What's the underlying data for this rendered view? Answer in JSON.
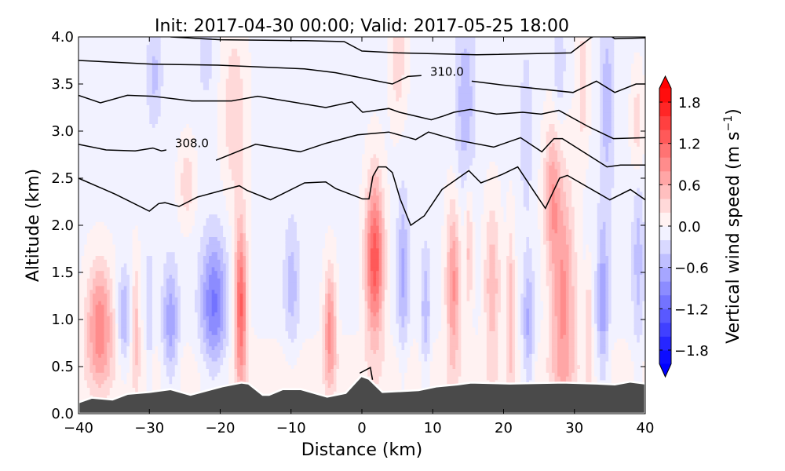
{
  "chart_data": {
    "type": "heatmap",
    "title": "Init: 2017-04-30 00:00; Valid: 2017-05-25 18:00",
    "xlabel": "Distance (km)",
    "ylabel": "Altitude (km)",
    "xlim": [
      -40,
      40
    ],
    "ylim": [
      0,
      4.0
    ],
    "xticks": [
      -40,
      -30,
      -20,
      -10,
      0,
      10,
      20,
      30,
      40
    ],
    "xtick_labels": [
      "−40",
      "−30",
      "−20",
      "−10",
      "0",
      "10",
      "20",
      "30",
      "40"
    ],
    "yticks": [
      0,
      0.5,
      1.0,
      1.5,
      2.0,
      2.5,
      3.0,
      3.5,
      4.0
    ],
    "ytick_labels": [
      "0.0",
      "0.5",
      "1.0",
      "1.5",
      "2.0",
      "2.5",
      "3.0",
      "3.5",
      "4.0"
    ],
    "grid": false,
    "colorbar": {
      "label": "Vertical wind speed (m s⁻¹)",
      "label_main": "Vertical wind speed (m s",
      "label_sup": "−1",
      "label_close": ")",
      "colormap": "bwr",
      "levels_min": -2.0,
      "levels_max": 2.0,
      "level_step": 0.2,
      "extend": "both",
      "ticks": [
        1.8,
        1.2,
        0.6,
        0.0,
        -0.6,
        -1.2,
        -1.8
      ],
      "tick_labels": [
        "1.8",
        "1.2",
        "0.6",
        "0.0",
        "−0.6",
        "−1.2",
        "−1.8"
      ],
      "position": "right"
    },
    "field_background": -0.05,
    "vertical_wind_features": [
      {
        "x": -37.0,
        "z": 0.95,
        "sx": 1.3,
        "sz": 0.45,
        "w": 1.0
      },
      {
        "x": -33.6,
        "z": 1.03,
        "sx": 0.6,
        "sz": 0.35,
        "w": -0.6
      },
      {
        "x": -31.9,
        "z": 0.95,
        "sx": 0.4,
        "sz": 0.5,
        "w": 0.5
      },
      {
        "x": -30.0,
        "z": 1.08,
        "sx": 0.3,
        "sz": 0.5,
        "w": -0.4
      },
      {
        "x": -27.0,
        "z": 0.95,
        "sx": 0.8,
        "sz": 0.45,
        "w": -0.7
      },
      {
        "x": -20.9,
        "z": 1.17,
        "sx": 1.3,
        "sz": 0.5,
        "w": -1.0
      },
      {
        "x": -17.1,
        "z": 1.17,
        "sx": 0.6,
        "sz": 0.6,
        "w": 1.3
      },
      {
        "x": -9.9,
        "z": 1.37,
        "sx": 0.8,
        "sz": 0.5,
        "w": -0.45
      },
      {
        "x": -4.5,
        "z": 0.92,
        "sx": 0.6,
        "sz": 0.45,
        "w": 0.9
      },
      {
        "x": -18.0,
        "z": 3.2,
        "sx": 1.2,
        "sz": 0.7,
        "w": 0.4
      },
      {
        "x": -24.7,
        "z": 2.45,
        "sx": 0.8,
        "sz": 0.3,
        "w": 0.4
      },
      {
        "x": -29.3,
        "z": 3.6,
        "sx": 0.8,
        "sz": 0.4,
        "w": -0.4
      },
      {
        "x": -22.0,
        "z": 3.8,
        "sx": 0.8,
        "sz": 0.3,
        "w": -0.3
      },
      {
        "x": 1.8,
        "z": 1.64,
        "sx": 0.9,
        "sz": 0.6,
        "w": 1.4
      },
      {
        "x": 5.8,
        "z": 1.5,
        "sx": 0.6,
        "sz": 0.6,
        "w": -0.6
      },
      {
        "x": 9.0,
        "z": 1.08,
        "sx": 0.5,
        "sz": 0.5,
        "w": -0.5
      },
      {
        "x": 12.9,
        "z": 1.37,
        "sx": 0.7,
        "sz": 0.6,
        "w": 0.9
      },
      {
        "x": 15.1,
        "z": 1.78,
        "sx": 0.4,
        "sz": 0.5,
        "w": 0.5
      },
      {
        "x": 18.4,
        "z": 1.37,
        "sx": 0.8,
        "sz": 0.6,
        "w": 0.6
      },
      {
        "x": 21.0,
        "z": 1.14,
        "sx": 0.4,
        "sz": 0.6,
        "w": 0.6
      },
      {
        "x": 23.5,
        "z": 0.92,
        "sx": 0.6,
        "sz": 0.5,
        "w": -0.6
      },
      {
        "x": 28.4,
        "z": 1.22,
        "sx": 1.2,
        "sz": 0.9,
        "w": 0.9
      },
      {
        "x": 26.8,
        "z": 2.33,
        "sx": 0.8,
        "sz": 0.5,
        "w": 0.7
      },
      {
        "x": 34.0,
        "z": 1.17,
        "sx": 0.6,
        "sz": 0.6,
        "w": -0.7
      },
      {
        "x": 32.0,
        "z": 0.92,
        "sx": 0.3,
        "sz": 0.4,
        "w": 0.5
      },
      {
        "x": 39.0,
        "z": 1.64,
        "sx": 0.6,
        "sz": 0.7,
        "w": -0.45
      },
      {
        "x": 34.6,
        "z": 3.3,
        "sx": 0.8,
        "sz": 0.8,
        "w": -0.45
      },
      {
        "x": 31.2,
        "z": 3.5,
        "sx": 0.6,
        "sz": 0.5,
        "w": 0.4
      },
      {
        "x": 27.9,
        "z": 3.7,
        "sx": 0.6,
        "sz": 0.4,
        "w": -0.35
      },
      {
        "x": 38.9,
        "z": 3.05,
        "sx": 0.6,
        "sz": 0.4,
        "w": 0.4
      },
      {
        "x": 23.2,
        "z": 3.0,
        "sx": 0.6,
        "sz": 0.6,
        "w": -0.35
      },
      {
        "x": 5.1,
        "z": 3.8,
        "sx": 0.8,
        "sz": 0.5,
        "w": 0.4
      },
      {
        "x": 14.6,
        "z": 3.3,
        "sx": 1.0,
        "sz": 0.7,
        "w": -0.5
      },
      {
        "x": 0.0,
        "z": 0.45,
        "sx": 60,
        "sz": 0.25,
        "w": 0.15
      }
    ],
    "contour_labels": [
      {
        "text": "308.0",
        "x": -24.0,
        "z": 2.87
      },
      {
        "text": "310.0",
        "x": 12.0,
        "z": 3.63
      }
    ],
    "contours": [
      [
        [
          -27,
          4.0
        ],
        [
          -20,
          3.97
        ],
        [
          -8,
          3.96
        ],
        [
          -2.5,
          3.95
        ],
        [
          0,
          3.85
        ],
        [
          5.1,
          3.83
        ],
        [
          16.2,
          3.81
        ],
        [
          29.5,
          3.83
        ],
        [
          32.3,
          3.99
        ],
        [
          32.6,
          4.0
        ]
      ],
      [
        [
          35.3,
          4.0
        ],
        [
          35.7,
          3.98
        ],
        [
          40,
          3.99
        ]
      ],
      [
        [
          -40,
          3.75
        ],
        [
          -29.5,
          3.71
        ],
        [
          -20.3,
          3.7
        ],
        [
          -8.1,
          3.66
        ],
        [
          -3.7,
          3.62
        ],
        [
          4.3,
          3.5
        ],
        [
          6.5,
          3.58
        ],
        [
          8.4,
          3.59
        ]
      ],
      [
        [
          15.5,
          3.53
        ],
        [
          19.8,
          3.49
        ],
        [
          29.8,
          3.41
        ],
        [
          33.1,
          3.53
        ],
        [
          35.7,
          3.41
        ],
        [
          38.7,
          3.5
        ],
        [
          40,
          3.5
        ]
      ],
      [
        [
          -40,
          3.38
        ],
        [
          -36.9,
          3.3
        ],
        [
          -33.1,
          3.38
        ],
        [
          -29.5,
          3.37
        ],
        [
          -24,
          3.32
        ],
        [
          -18.4,
          3.32
        ],
        [
          -14.7,
          3.37
        ],
        [
          -5.1,
          3.25
        ],
        [
          -1.4,
          3.31
        ],
        [
          0.1,
          3.2
        ],
        [
          3.8,
          3.24
        ],
        [
          5.3,
          3.2
        ],
        [
          9.8,
          3.12
        ],
        [
          11.5,
          3.16
        ],
        [
          13.0,
          3.2
        ],
        [
          15.3,
          3.23
        ],
        [
          19.0,
          3.18
        ],
        [
          22.7,
          3.2
        ],
        [
          25.3,
          3.18
        ],
        [
          27.8,
          3.22
        ],
        [
          31.9,
          3.05
        ],
        [
          35.5,
          2.92
        ],
        [
          40,
          2.93
        ]
      ],
      [
        [
          -40,
          2.86
        ],
        [
          -36.1,
          2.8
        ],
        [
          -32,
          2.79
        ],
        [
          -29.5,
          2.82
        ],
        [
          -28.3,
          2.79
        ],
        [
          -27.6,
          2.8
        ]
      ],
      [
        [
          -20.6,
          2.69
        ],
        [
          -15,
          2.86
        ],
        [
          -8.7,
          2.78
        ],
        [
          -5.1,
          2.87
        ],
        [
          -0.6,
          2.96
        ],
        [
          3.8,
          2.99
        ],
        [
          7.6,
          2.91
        ],
        [
          9.4,
          2.99
        ],
        [
          13.1,
          2.91
        ],
        [
          18.6,
          2.83
        ],
        [
          22.4,
          2.93
        ],
        [
          25.4,
          2.78
        ],
        [
          27.1,
          2.92
        ],
        [
          28.3,
          2.92
        ],
        [
          34.6,
          2.62
        ],
        [
          36.5,
          2.64
        ],
        [
          40,
          2.64
        ]
      ],
      [
        [
          -40,
          2.5
        ],
        [
          -34.8,
          2.33
        ],
        [
          -30.0,
          2.15
        ],
        [
          -28.7,
          2.23
        ],
        [
          -27.8,
          2.24
        ],
        [
          -25.8,
          2.2
        ],
        [
          -23.2,
          2.3
        ],
        [
          -17.3,
          2.42
        ],
        [
          -16.2,
          2.37
        ],
        [
          -12.9,
          2.27
        ],
        [
          -8.1,
          2.45
        ],
        [
          -5.1,
          2.46
        ],
        [
          -3.7,
          2.39
        ],
        [
          0.1,
          2.28
        ],
        [
          1.0,
          2.28
        ],
        [
          1.55,
          2.52
        ],
        [
          2.3,
          2.62
        ],
        [
          3.4,
          2.62
        ],
        [
          4.3,
          2.56
        ],
        [
          5.4,
          2.28
        ],
        [
          6.9,
          2.0
        ],
        [
          8.8,
          2.1
        ],
        [
          11.3,
          2.38
        ],
        [
          15.1,
          2.58
        ],
        [
          16.8,
          2.45
        ],
        [
          19.8,
          2.54
        ],
        [
          22.0,
          2.62
        ],
        [
          24.2,
          2.37
        ],
        [
          25.9,
          2.18
        ],
        [
          27.9,
          2.5
        ],
        [
          29.0,
          2.53
        ],
        [
          35.0,
          2.27
        ],
        [
          37.9,
          2.38
        ],
        [
          40,
          2.27
        ]
      ],
      [
        [
          -0.3,
          0.43
        ],
        [
          1.2,
          0.49
        ],
        [
          1.5,
          0.36
        ]
      ]
    ],
    "terrain": [
      [
        -40,
        0.12
      ],
      [
        -38.1,
        0.17
      ],
      [
        -35.2,
        0.15
      ],
      [
        -33.1,
        0.21
      ],
      [
        -30,
        0.23
      ],
      [
        -27,
        0.26
      ],
      [
        -24.2,
        0.2
      ],
      [
        -19.7,
        0.29
      ],
      [
        -17,
        0.33
      ],
      [
        -16,
        0.32
      ],
      [
        -14,
        0.2
      ],
      [
        -13.1,
        0.2
      ],
      [
        -11.2,
        0.26
      ],
      [
        -8.6,
        0.26
      ],
      [
        -4.9,
        0.18
      ],
      [
        -2.3,
        0.22
      ],
      [
        -0.1,
        0.4
      ],
      [
        1.0,
        0.37
      ],
      [
        2.9,
        0.23
      ],
      [
        8.0,
        0.25
      ],
      [
        10.6,
        0.29
      ],
      [
        13.5,
        0.31
      ],
      [
        15.4,
        0.33
      ],
      [
        20.9,
        0.32
      ],
      [
        28.4,
        0.33
      ],
      [
        33.1,
        0.32
      ],
      [
        35.7,
        0.31
      ],
      [
        37.9,
        0.34
      ],
      [
        40,
        0.32
      ]
    ],
    "colors": {
      "terrain": "#4a4a4a",
      "contour": "#000000",
      "frame": "#000000"
    }
  }
}
